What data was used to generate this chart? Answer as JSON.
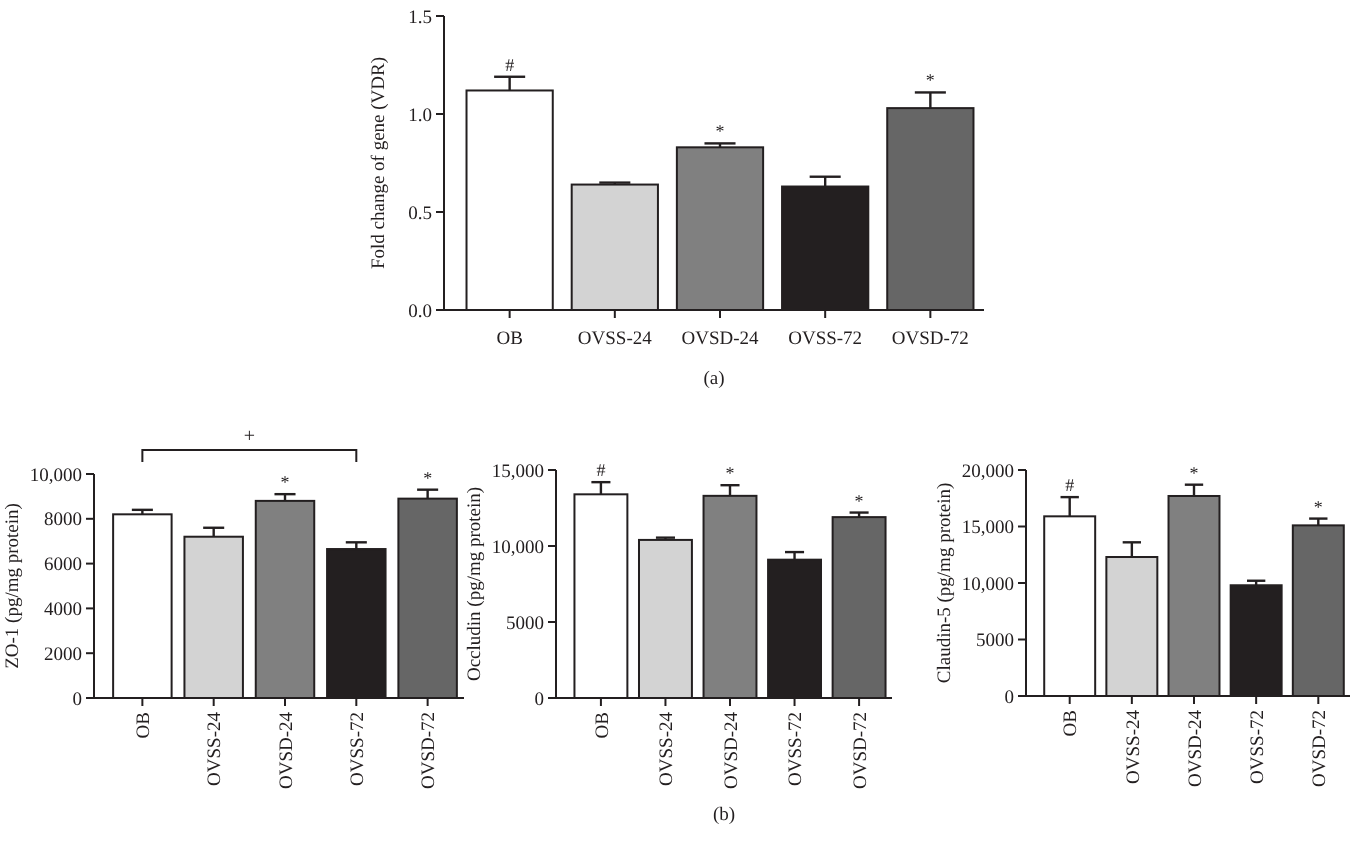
{
  "chart_data": [
    {
      "type": "bar",
      "ylabel": "Fold change of gene (VDR)",
      "categories": [
        "OB",
        "OVSS-24",
        "OVSD-24",
        "OVSS-72",
        "OVSD-72"
      ],
      "values": [
        1.12,
        0.64,
        0.83,
        0.63,
        1.03
      ],
      "errors": [
        0.07,
        0.01,
        0.02,
        0.05,
        0.08
      ],
      "colors": [
        "#ffffff",
        "#d3d3d3",
        "#808080",
        "#231f20",
        "#666666"
      ],
      "ylim": [
        0,
        1.5
      ],
      "yticks": [
        {
          "value": 0,
          "label": "0.0"
        },
        {
          "value": 0.5,
          "label": "0.5"
        },
        {
          "value": 1,
          "label": "1.0"
        },
        {
          "value": 1.5,
          "label": "1.5"
        }
      ],
      "annotations": [
        {
          "text": "#",
          "x": "OB",
          "y": 1.19
        },
        {
          "text": "*",
          "x": "OVSD-24",
          "y": 0.85
        },
        {
          "text": "*",
          "x": "OVSD-72",
          "y": 1.11
        },
        "(a)"
      ]
    },
    {
      "type": "bar",
      "ylabel": "ZO-1 (pg/mg protein)",
      "categories": [
        "OB",
        "OVSS-24",
        "OVSD-24",
        "OVSS-72",
        "OVSD-72"
      ],
      "values": [
        8200,
        7200,
        8800,
        6650,
        8900
      ],
      "errors": [
        200,
        400,
        300,
        300,
        400
      ],
      "colors": [
        "#ffffff",
        "#d3d3d3",
        "#808080",
        "#231f20",
        "#666666"
      ],
      "ylim": [
        0,
        10000
      ],
      "yticks": [
        0,
        2000,
        4000,
        6000,
        8000,
        {
          "value": 10000,
          "label": "10,000"
        }
      ],
      "annotations": [
        {
          "text": "*",
          "x": "OVSD-24",
          "y": 9100
        },
        {
          "text": "*",
          "x": "OVSD-72",
          "y": 9300
        },
        "+"
      ]
    },
    {
      "type": "bar",
      "ylabel": "Occludin (pg/mg protein)",
      "categories": [
        "OB",
        "OVSS-24",
        "OVSD-24",
        "OVSS-72",
        "OVSD-72"
      ],
      "values": [
        13400,
        10400,
        13300,
        9100,
        11900
      ],
      "errors": [
        800,
        150,
        700,
        500,
        300
      ],
      "colors": [
        "#ffffff",
        "#d3d3d3",
        "#808080",
        "#231f20",
        "#666666"
      ],
      "ylim": [
        0,
        15000
      ],
      "yticks": [
        0,
        5000,
        {
          "value": 10000,
          "label": "10,000"
        },
        {
          "value": 15000,
          "label": "15,000"
        }
      ],
      "annotations": [
        {
          "text": "#",
          "x": "OB",
          "y": 14200
        },
        {
          "text": "*",
          "x": "OVSD-24",
          "y": 14000
        },
        {
          "text": "*",
          "x": "OVSD-72",
          "y": 12200
        },
        "(b)"
      ]
    },
    {
      "type": "bar",
      "ylabel": "Claudin-5 (pg/mg protein)",
      "categories": [
        "OB",
        "OVSS-24",
        "OVSD-24",
        "OVSS-72",
        "OVSD-72"
      ],
      "values": [
        15900,
        12300,
        17700,
        9800,
        15100
      ],
      "errors": [
        1700,
        1300,
        1000,
        400,
        600
      ],
      "colors": [
        "#ffffff",
        "#d3d3d3",
        "#808080",
        "#231f20",
        "#666666"
      ],
      "ylim": [
        0,
        20000
      ],
      "yticks": [
        0,
        5000,
        {
          "value": 10000,
          "label": "10,000"
        },
        {
          "value": 15000,
          "label": "15,000"
        },
        {
          "value": 20000,
          "label": "20,000"
        }
      ],
      "annotations": [
        {
          "text": "#",
          "x": "OB",
          "y": 17600
        },
        {
          "text": "*",
          "x": "OVSD-24",
          "y": 18700
        },
        {
          "text": "*",
          "x": "OVSD-72",
          "y": 15700
        }
      ]
    }
  ]
}
